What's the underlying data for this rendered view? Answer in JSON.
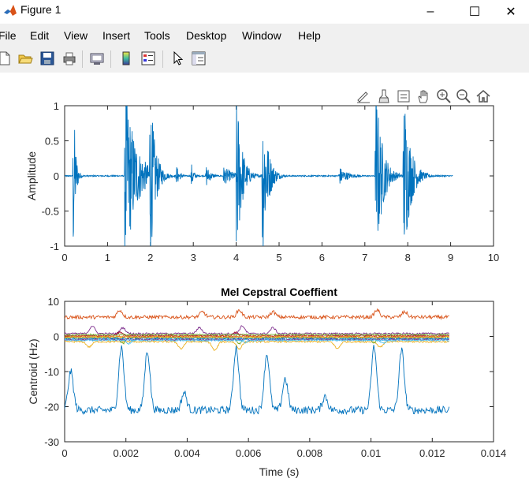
{
  "window": {
    "title": "Figure 1",
    "minimize": "–",
    "maximize": "☐",
    "close": "✕"
  },
  "menu": [
    "File",
    "Edit",
    "View",
    "Insert",
    "Tools",
    "Desktop",
    "Window",
    "Help"
  ],
  "toolbar_icons": [
    "new-figure-icon",
    "open-file-icon",
    "save-icon",
    "print-icon",
    "link-plot-icon",
    "colorbar-icon",
    "legend-icon",
    "pointer-icon",
    "property-inspector-icon"
  ],
  "axes_toolbar_icons": [
    "edit-plot-icon",
    "brush-icon",
    "data-tips-icon",
    "pan-hand-icon",
    "zoom-in-icon",
    "zoom-out-icon",
    "home-icon"
  ],
  "chart_data": [
    {
      "type": "line",
      "title": "",
      "xlabel": "",
      "ylabel": "Amplitude",
      "xlim": [
        0,
        10
      ],
      "ylim": [
        -1,
        1
      ],
      "xticks": [
        "0",
        "1",
        "2",
        "3",
        "4",
        "5",
        "6",
        "7",
        "8",
        "9",
        "10"
      ],
      "yticks": [
        "1",
        "0.5",
        "0",
        "-0.5",
        "-1"
      ],
      "series_color": "#0072BD",
      "signal_end": 9.05,
      "events": [
        {
          "t": 0.2,
          "amp": 0.95,
          "decay": 0.05
        },
        {
          "t": 1.4,
          "amp": 1.0,
          "decay": 0.25
        },
        {
          "t": 1.98,
          "amp": 1.0,
          "decay": 0.12
        },
        {
          "t": 2.6,
          "amp": 0.12,
          "decay": 0.08
        },
        {
          "t": 2.95,
          "amp": 0.15,
          "decay": 0.06
        },
        {
          "t": 3.3,
          "amp": 0.12,
          "decay": 0.1
        },
        {
          "t": 3.7,
          "amp": 0.1,
          "decay": 0.25
        },
        {
          "t": 4.0,
          "amp": 1.0,
          "decay": 0.12
        },
        {
          "t": 4.6,
          "amp": 1.0,
          "decay": 0.12
        },
        {
          "t": 4.9,
          "amp": 0.1,
          "decay": 0.05
        },
        {
          "t": 6.4,
          "amp": 0.1,
          "decay": 0.2
        },
        {
          "t": 7.25,
          "amp": 1.0,
          "decay": 0.15
        },
        {
          "t": 7.9,
          "amp": 1.0,
          "decay": 0.15
        }
      ]
    },
    {
      "type": "line",
      "title": "Mel Cepstral Coeffient",
      "xlabel": "Time (s)",
      "ylabel": "Centroid (Hz)",
      "xlim": [
        0,
        0.014
      ],
      "ylim": [
        -30,
        10
      ],
      "xticks": [
        "0",
        "0.002",
        "0.004",
        "0.006",
        "0.008",
        "0.01",
        "0.012",
        "0.014"
      ],
      "yticks": [
        "10",
        "0",
        "-10",
        "-20",
        "-30"
      ],
      "x_end": 0.01255,
      "series": [
        {
          "color": "#0072BD",
          "base": -21,
          "peaks": [
            {
              "x": 0.0002,
              "y": -10
            },
            {
              "x": 0.00185,
              "y": -3
            },
            {
              "x": 0.0027,
              "y": -4
            },
            {
              "x": 0.0039,
              "y": -16
            },
            {
              "x": 0.0056,
              "y": -3
            },
            {
              "x": 0.0066,
              "y": -5
            },
            {
              "x": 0.0072,
              "y": -12
            },
            {
              "x": 0.0085,
              "y": -17
            },
            {
              "x": 0.0101,
              "y": -3
            },
            {
              "x": 0.011,
              "y": -4
            }
          ]
        },
        {
          "color": "#D95319",
          "base": 5.5,
          "peaks": [
            {
              "x": 0.0018,
              "y": 7.5
            },
            {
              "x": 0.0045,
              "y": 7
            },
            {
              "x": 0.0057,
              "y": 7.5
            },
            {
              "x": 0.0068,
              "y": 7
            },
            {
              "x": 0.0102,
              "y": 7.5
            },
            {
              "x": 0.0111,
              "y": 7
            }
          ]
        },
        {
          "color": "#EDB120",
          "base": -1.5,
          "peaks": [
            {
              "x": 0.0008,
              "y": -3
            },
            {
              "x": 0.0038,
              "y": -3.5
            },
            {
              "x": 0.0049,
              "y": -4
            },
            {
              "x": 0.0057,
              "y": -3.5
            },
            {
              "x": 0.0089,
              "y": -3.5
            },
            {
              "x": 0.0103,
              "y": -3
            }
          ]
        },
        {
          "color": "#7E2F8E",
          "base": 0.8,
          "peaks": [
            {
              "x": 0.0009,
              "y": 3
            },
            {
              "x": 0.0019,
              "y": 2.5
            },
            {
              "x": 0.0044,
              "y": 2.5
            },
            {
              "x": 0.0058,
              "y": 3
            },
            {
              "x": 0.0068,
              "y": 2.5
            }
          ]
        },
        {
          "color": "#77AC30",
          "base": -0.3,
          "peaks": [
            {
              "x": 0.0019,
              "y": -2
            },
            {
              "x": 0.0057,
              "y": -2
            },
            {
              "x": 0.0101,
              "y": -1.8
            }
          ]
        },
        {
          "color": "#4DBEEE",
          "base": -0.8,
          "peaks": [
            {
              "x": 0.0021,
              "y": -2
            },
            {
              "x": 0.0059,
              "y": -1.8
            },
            {
              "x": 0.0104,
              "y": -2
            }
          ]
        },
        {
          "color": "#A2142F",
          "base": 0.2,
          "peaks": [
            {
              "x": 0.0018,
              "y": 1.2
            },
            {
              "x": 0.0056,
              "y": 1.2
            }
          ]
        },
        {
          "color": "#0072BD",
          "base": -0.5,
          "peaks": []
        },
        {
          "color": "#D95319",
          "base": 0.0,
          "peaks": []
        },
        {
          "color": "#EDB120",
          "base": -0.2,
          "peaks": []
        },
        {
          "color": "#7E2F8E",
          "base": -0.9,
          "peaks": []
        },
        {
          "color": "#77AC30",
          "base": 0.5,
          "peaks": []
        },
        {
          "color": "#4DBEEE",
          "base": -1.1,
          "peaks": []
        }
      ]
    }
  ]
}
